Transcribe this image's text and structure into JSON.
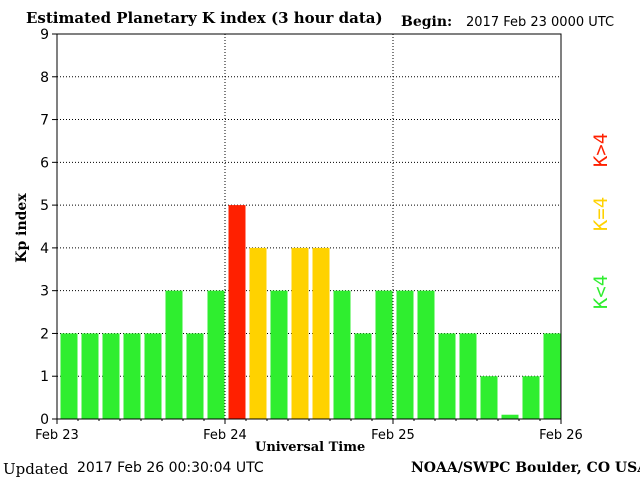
{
  "header": {
    "title": "Estimated Planetary K index (3 hour data)",
    "begin_label": "Begin:",
    "begin_value": "2017 Feb 23 0000 UTC"
  },
  "footer": {
    "updated_label": "Updated",
    "updated_value": "2017 Feb 26 00:30:04 UTC",
    "source": "NOAA/SWPC Boulder, CO USA"
  },
  "legend": [
    {
      "label": "K<4",
      "color": "#2fee2f"
    },
    {
      "label": "K=4",
      "color": "#ffd200"
    },
    {
      "label": "K>4",
      "color": "#ff2000"
    }
  ],
  "colors": {
    "below4": "#2fee2f",
    "equal4": "#ffd200",
    "above4": "#ff2000",
    "grid": "#000000",
    "axis": "#000000"
  },
  "chart_data": {
    "type": "bar",
    "xlabel": "Universal Time",
    "ylabel": "Kp index",
    "ylim": [
      0,
      9
    ],
    "yticks": [
      0,
      1,
      2,
      3,
      4,
      5,
      6,
      7,
      8,
      9
    ],
    "xticks": [
      "Feb 23",
      "Feb 24",
      "Feb 25",
      "Feb 26"
    ],
    "grid": true,
    "bars_per_day": 8,
    "values": [
      2,
      2,
      2,
      2,
      2,
      3,
      2,
      3,
      5,
      4,
      3,
      4,
      4,
      3,
      2,
      3,
      3,
      3,
      2,
      2,
      1,
      0.1,
      1,
      2
    ]
  }
}
